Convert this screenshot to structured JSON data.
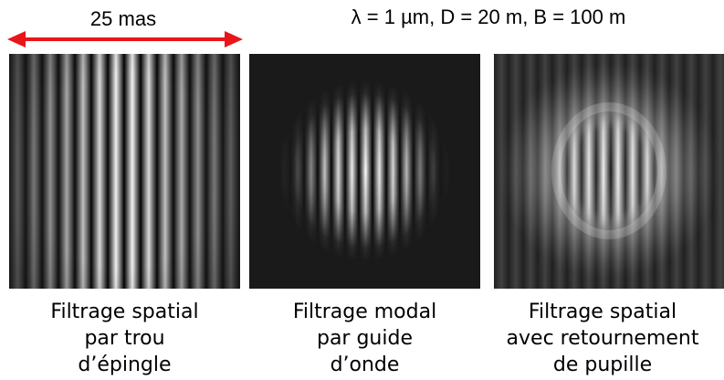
{
  "scale_bar": {
    "label": "25 mas",
    "arrow_color": "#e8161b"
  },
  "parameters": "λ = 1 µm,  D = 20 m,  B = 100 m",
  "panels": [
    {
      "caption_lines": [
        "Filtrage spatial",
        "par trou",
        "d’épingle"
      ]
    },
    {
      "caption_lines": [
        "Filtrage modal",
        "par guide",
        "d’onde"
      ]
    },
    {
      "caption_lines": [
        "Filtrage spatial",
        "avec retournement",
        "de pupille"
      ]
    }
  ]
}
